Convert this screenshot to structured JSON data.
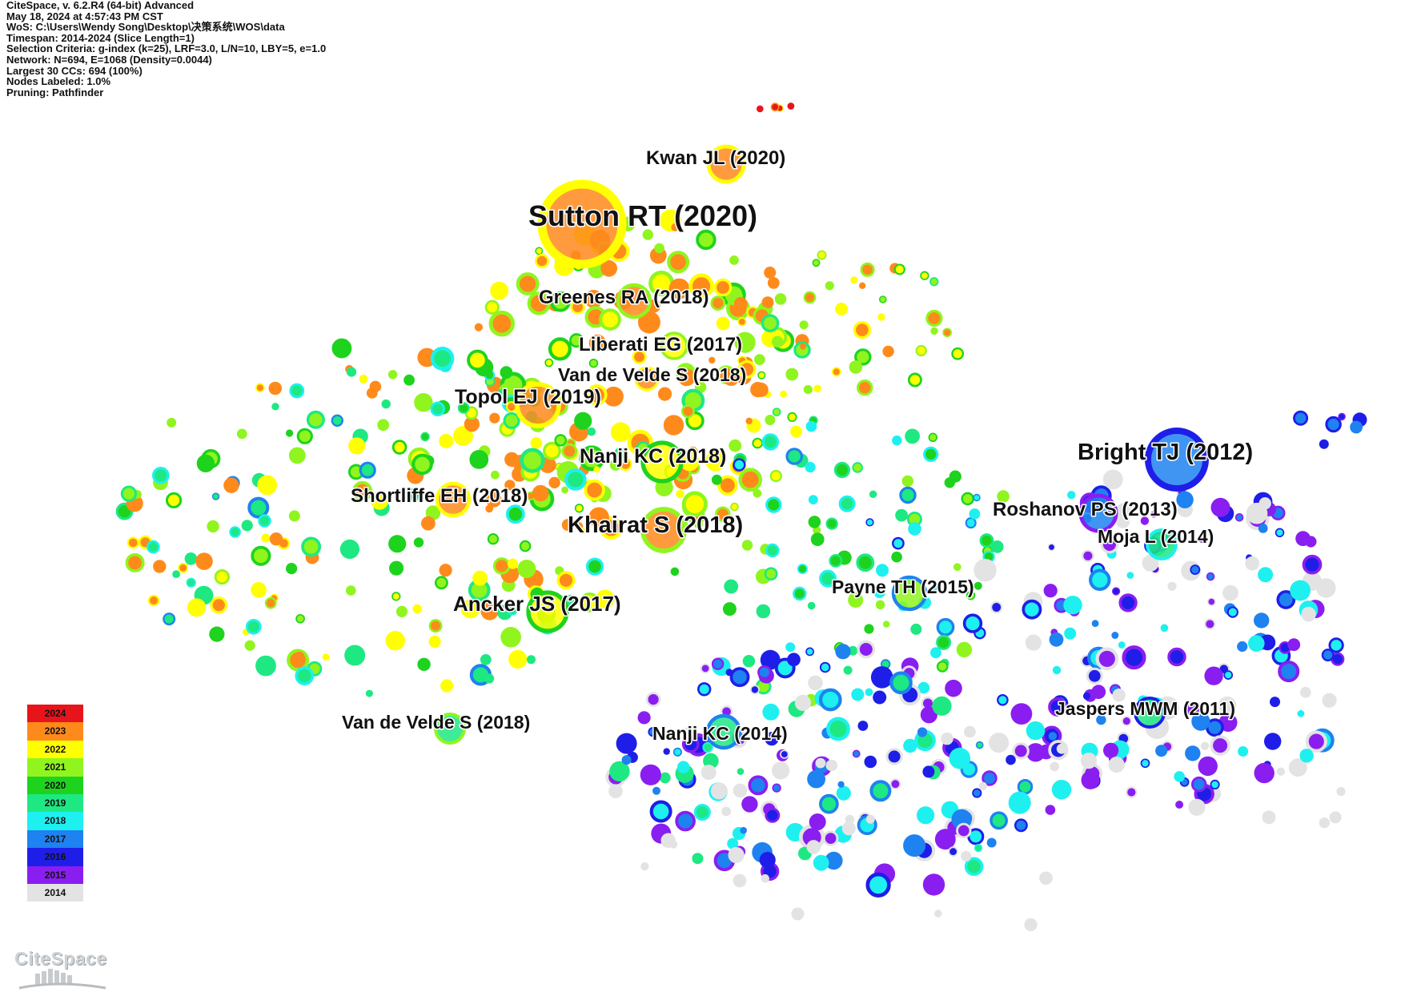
{
  "header_lines": [
    "CiteSpace, v. 6.2.R4 (64-bit) Advanced",
    "May 18, 2024 at 4:57:43 PM CST",
    "WoS: C:\\Users\\Wendy Song\\Desktop\\决策系统\\WOS\\data",
    "Timespan: 2014-2024 (Slice Length=1)",
    "Selection Criteria: g-index (k=25), LRF=3.0, L/N=10, LBY=5, e=1.0",
    "Network: N=694, E=1068 (Density=0.0044)",
    "Largest 30 CCs: 694 (100%)",
    "Nodes Labeled: 1.0%",
    "Pruning: Pathfinder"
  ],
  "colors": {
    "2024": "#e8141b",
    "2023": "#ff8a1c",
    "2022": "#ffff00",
    "2021": "#90f51e",
    "2020": "#1ed31e",
    "2019": "#1ee882",
    "2018": "#1ef0f0",
    "2017": "#1e82f0",
    "2016": "#1e1ee8",
    "2015": "#8a1ef0",
    "2014": "#e3e3e3"
  },
  "legend": [
    "2024",
    "2023",
    "2022",
    "2021",
    "2020",
    "2019",
    "2018",
    "2017",
    "2016",
    "2015",
    "2014"
  ],
  "labeled_nodes": [
    {
      "label": "Sutton RT (2020)",
      "year": "2023",
      "ring": "2022"
    },
    {
      "label": "Kwan JL (2020)",
      "year": "2023",
      "ring": "2022"
    },
    {
      "label": "Greenes RA (2018)",
      "year": "2023",
      "ring": "2021"
    },
    {
      "label": "Liberati EG (2017)",
      "year": "2022",
      "ring": "2021"
    },
    {
      "label": "Van de Velde S (2018)",
      "year": "2023",
      "ring": "2022"
    },
    {
      "label": "Topol EJ (2019)",
      "year": "2023",
      "ring": "2022"
    },
    {
      "label": "Nanji KC (2018)",
      "year": "2022",
      "ring": "2020"
    },
    {
      "label": "Shortliffe EH (2018)",
      "year": "2023",
      "ring": "2022"
    },
    {
      "label": "Khairat S (2018)",
      "year": "2023",
      "ring": "2021"
    },
    {
      "label": "Ancker JS (2017)",
      "year": "2022",
      "ring": "2020"
    },
    {
      "label": "Van de Velde S (2018)",
      "year": "2019",
      "ring": "2021"
    },
    {
      "label": "Nanji KC (2014)",
      "year": "2019",
      "ring": "2017"
    },
    {
      "label": "Payne TH (2015)",
      "year": "2021",
      "ring": "2017"
    },
    {
      "label": "Bright TJ (2012)",
      "year": "2017",
      "ring": "2016"
    },
    {
      "label": "Roshanov PS (2013)",
      "year": "2017",
      "ring": "2015"
    },
    {
      "label": "Moja L (2014)",
      "year": "2019",
      "ring": "2018"
    },
    {
      "label": "Jaspers MWM (2011)",
      "year": "2019",
      "ring": "2016"
    }
  ],
  "logo_text": "CiteSpace"
}
